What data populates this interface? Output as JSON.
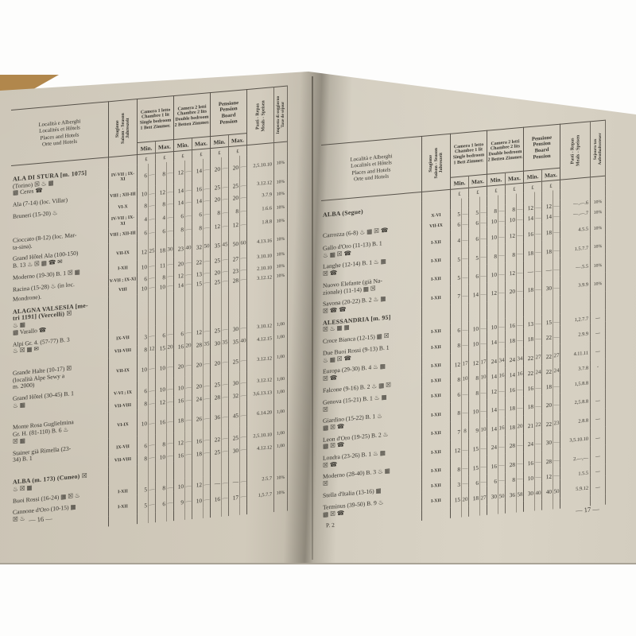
{
  "meta": {
    "left_page_number": "— 16 —",
    "right_page_number": "— 17 —",
    "signature_mark": "P. 2",
    "icon_legend": {
      "☒": "telegraph-icon",
      "♨": "bath-icon",
      "▦": "railway-icon",
      "☎": "phone-icon",
      "✉": "post-icon"
    }
  },
  "header": {
    "locality": [
      "Località e Alberghi",
      "Localités et Hôtels",
      "Places and Hotels",
      "Orte und Hotels"
    ],
    "season": [
      "Stagione",
      "Saison - Season",
      "Jahreszeit"
    ],
    "room1": [
      "Camera 1 letto",
      "Chambre 1 lit",
      "Single bedroom",
      "1 Bett Zimmer."
    ],
    "room2": [
      "Camera 2 letti",
      "Chambre 2 lits",
      "Double bedroom",
      "2 Betten Zimmer."
    ],
    "pension": [
      "Pensione",
      "Pension",
      "Board",
      "Pension"
    ],
    "min_label": "Min.",
    "max_label": "Max.",
    "lire_symbol": "₤",
    "pasti": [
      "Pasti - Repas",
      "Meals - Speisen"
    ],
    "tax_left": [
      "Imposta di soggiorno",
      "Taxe de séjour"
    ],
    "tax_right": [
      "Sojourn tax",
      "Aufenthaltssteuer"
    ]
  },
  "left_page": {
    "rows": [
      {
        "bold": 1,
        "name": [
          "ALA DI STURA [m. 1075]",
          "(Torino) ☒ ♨ ▦",
          "▦ Ceres ☎"
        ],
        "season": "IV-VII ; IX-XI",
        "values": [
          "6",
          "—",
          "8",
          "—",
          "12",
          "—",
          "14",
          "—",
          "20",
          "—",
          "20",
          "—"
        ],
        "pasti": "2,5.10.10",
        "tax": "10%"
      },
      {
        "gap": true,
        "name": [
          "Ala (7-14) (loc. Villar)"
        ],
        "season": "VIII ; XII-III",
        "values": [
          "10",
          "—",
          "12",
          "—",
          "14",
          "—",
          "16",
          "—",
          "25",
          "—",
          "25",
          "—"
        ],
        "pasti": "3.12.12",
        "tax": "10%"
      },
      {
        "gap": true,
        "name": [
          "Bruneri (15-20) ♨"
        ],
        "season": "VI-X",
        "values": [
          "8",
          "—",
          "8",
          "—",
          "14",
          "—",
          "14",
          "—",
          "20",
          "—",
          "20",
          "—"
        ],
        "pasti": "3.7.9",
        "tax": "10%"
      },
      {
        "gap": true,
        "name": [],
        "season": "IV-VII ; IX-XI",
        "values": [
          "4",
          "—",
          "4",
          "—",
          "6",
          "—",
          "6",
          "—",
          "8",
          "—",
          "8",
          "—"
        ],
        "pasti": "1.6.6",
        "tax": "10%"
      },
      {
        "name": [
          "Cioccato (8-12) (loc. Mar-",
          "ta-sina)."
        ],
        "season": "VIII ; XII-III",
        "values": [
          "6",
          "—",
          "6",
          "—",
          "8",
          "—",
          "8",
          "—",
          "12",
          "—",
          "12",
          "—"
        ],
        "pasti": "1.8.8",
        "tax": "10%"
      },
      {
        "gap": true,
        "name": [
          "Grand Hôtel Ala (100-150)",
          "B. 13 ♨ ☒ ▦ ☎ ✉"
        ],
        "season": "VII-IX",
        "values": [
          "12",
          "25",
          "18",
          "30",
          "23",
          "40",
          "32",
          "50",
          "35",
          "45",
          "50",
          "60"
        ],
        "pasti": "4.13.16",
        "tax": "10%"
      },
      {
        "gap": true,
        "name": [
          "Moderno (19-30) B. 1 ☒ ▦"
        ],
        "season": "I-XII",
        "values": [
          "10",
          "—",
          "11",
          "—",
          "20",
          "—",
          "22",
          "—",
          "25",
          "—",
          "27",
          "—"
        ],
        "pasti": "3.10.10",
        "tax": "10%"
      },
      {
        "gap": true,
        "name": [
          "Racina (15-28) ♨ (in loc."
        ],
        "season": "V-VII ; IX-XI",
        "values": [
          "6",
          "—",
          "8",
          "—",
          "12",
          "—",
          "13",
          "—",
          "20",
          "—",
          "23",
          "—"
        ],
        "pasti": "2.10.10",
        "tax": "10%"
      },
      {
        "name": [
          "Mondrone)."
        ],
        "season": "VIII",
        "values": [
          "10",
          "—",
          "10",
          "—",
          "14",
          "—",
          "15",
          "—",
          "25",
          "—",
          "28",
          "—"
        ],
        "pasti": "3.12.12",
        "tax": "10%"
      },
      {
        "gap": true,
        "head": true,
        "bold": 2,
        "name": [
          "ALAGNA VALSESIA [me-",
          "tri 1191] (Vercelli) ☒",
          "♨ ▦",
          "▦ Varallo ☎"
        ],
        "season": "",
        "values": [
          "",
          "",
          "",
          "",
          "",
          "",
          "",
          "",
          "",
          "",
          "",
          ""
        ],
        "pasti": "",
        "tax": ""
      },
      {
        "gap": true,
        "name": [
          "Alpi Gr. 4. (57-77) B. 3",
          "♨ ☒ ▦ ✉"
        ],
        "season": "IX-VII",
        "values": [
          "3",
          "—",
          "6",
          "—",
          "6",
          "—",
          "12",
          "—",
          "25",
          "—",
          "30",
          "—"
        ],
        "pasti": "3.10.12",
        "tax": "1,00"
      },
      {
        "name": [],
        "season": "VII-VIII",
        "values": [
          "8",
          "12",
          "15",
          "20",
          "16",
          "20",
          "28",
          "35",
          "30",
          "35",
          "35",
          "40"
        ],
        "pasti": "4.12.15",
        "tax": "1,00"
      },
      {
        "gap": true,
        "name": [
          "Grande Halte (10-17) ☒",
          "(località Alpe Sewy a",
          "m. 2000)"
        ],
        "season": "VII-IX",
        "values": [
          "10",
          "—",
          "10",
          "—",
          "20",
          "—",
          "20",
          "—",
          "20",
          "—",
          "25",
          "—"
        ],
        "pasti": "3.12.12",
        "tax": "1,00"
      },
      {
        "gap": true,
        "name": [
          "Grand Hôtel (30-45) B. 1",
          "♨ ▦"
        ],
        "season": "V-VI ; IX",
        "values": [
          "6",
          "—",
          "10",
          "—",
          "10",
          "—",
          "20",
          "—",
          "25",
          "—",
          "30",
          "—"
        ],
        "pasti": "3.12.12",
        "tax": "1,00"
      },
      {
        "name": [],
        "season": "VII-VIII",
        "values": [
          "8",
          "—",
          "12",
          "—",
          "16",
          "—",
          "24",
          "—",
          "28",
          "—",
          "32",
          "—"
        ],
        "pasti": "3,6.13.13",
        "tax": "1,00"
      },
      {
        "gap": true,
        "name": [
          "Monte Rosa Guglielmina",
          "Gr. H. (81-110) B. 6 ♨",
          "☒ ▦"
        ],
        "season": "VI-IX",
        "values": [
          "10",
          "—",
          "16",
          "—",
          "18",
          "—",
          "26",
          "—",
          "36",
          "—",
          "45",
          "—"
        ],
        "pasti": "6.14.20",
        "tax": "1,00"
      },
      {
        "gap": true,
        "name": [
          "Stainer già Rimella (23-",
          "34) B. 1"
        ],
        "season": "IX-VII",
        "values": [
          "6",
          "—",
          "8",
          "—",
          "12",
          "—",
          "16",
          "—",
          "22",
          "—",
          "25",
          "—"
        ],
        "pasti": "2,5.10.10",
        "tax": "1,00"
      },
      {
        "name": [],
        "season": "VII-VIII",
        "values": [
          "8",
          "—",
          "10",
          "—",
          "16",
          "—",
          "18",
          "—",
          "25",
          "—",
          "30",
          "—"
        ],
        "pasti": "4.12.12",
        "tax": "1,00"
      },
      {
        "gap": true,
        "head": true,
        "bold": 1,
        "name": [
          "ALBA (m. 173) (Cuneo) ☒",
          "♨ ☒ ▦"
        ],
        "season": "",
        "values": [
          "",
          "",
          "",
          "",
          "",
          "",
          "",
          "",
          "",
          "",
          "",
          ""
        ],
        "pasti": "",
        "tax": ""
      },
      {
        "gap": true,
        "name": [
          "Buoi Rossi (16-24) ▦ ☒ ♨"
        ],
        "season": "I-XII",
        "values": [
          "5",
          "—",
          "8",
          "—",
          "10",
          "—",
          "12",
          "—",
          "—",
          "—",
          "—",
          "—"
        ],
        "pasti": "2.5.7",
        "tax": "10%"
      },
      {
        "gap": true,
        "name": [
          "Cannone d'Oro (10-15) ▦",
          "☒ ♨"
        ],
        "season": "I-XII",
        "values": [
          "5",
          "—",
          "6",
          "—",
          "9",
          "—",
          "10",
          "—",
          "16",
          "—",
          "17",
          "—"
        ],
        "pasti": "1,5.7.7",
        "tax": "10%"
      },
      {
        "name": [],
        "season": "",
        "values": [
          "",
          "",
          "",
          "",
          "",
          "",
          "",
          "",
          "",
          "",
          "",
          ""
        ],
        "pasti": "",
        "tax": ""
      }
    ]
  },
  "right_page": {
    "rows": [
      {
        "head": true,
        "bold": 1,
        "name": [
          "ALBA (Segue)"
        ],
        "season": "",
        "values": [
          "",
          "",
          "",
          "",
          "",
          "",
          "",
          "",
          "",
          "",
          "",
          ""
        ],
        "pasti": "",
        "tax": ""
      },
      {
        "name": [],
        "season": "X-VI",
        "values": [
          "5",
          "—",
          "5",
          "—",
          "8",
          "—",
          "8",
          "—",
          "12",
          "—",
          "12",
          "—"
        ],
        "pasti": "—.—.6",
        "tax": "10%"
      },
      {
        "name": [
          "Carrozza (6-8) ♨ ▦ ☒ ☎"
        ],
        "season": "VII-IX",
        "values": [
          "6",
          "—",
          "6",
          "—",
          "10",
          "—",
          "10",
          "—",
          "14",
          "—",
          "14",
          "—"
        ],
        "pasti": "—.—.7",
        "tax": "10%"
      },
      {
        "gap": true,
        "name": [
          "Gallo d'Oro (11-13) B. 1",
          "♨ ▦ ☒ ☎"
        ],
        "season": "I-XII",
        "values": [
          "4",
          "—",
          "6",
          "—",
          "10",
          "—",
          "12",
          "—",
          "16",
          "—",
          "18",
          "—"
        ],
        "pasti": "4.5.5",
        "tax": "10%"
      },
      {
        "gap": true,
        "name": [
          "Langhe (12-14) B. 1 ♨ ▦",
          "☒ ☎"
        ],
        "season": "I-XII",
        "values": [
          "5",
          "—",
          "5",
          "—",
          "8",
          "—",
          "8",
          "—",
          "18",
          "—",
          "18",
          "—"
        ],
        "pasti": "1.5.7.7",
        "tax": "10%"
      },
      {
        "gap": true,
        "name": [
          "Nuovo Elefante (già Na-",
          "zionale) (11-14) ▦ ☒"
        ],
        "season": "I-XII",
        "values": [
          "5",
          "—",
          "6",
          "—",
          "10",
          "—",
          "12",
          "—",
          "—",
          "—",
          "—",
          "—"
        ],
        "pasti": "—.5.5",
        "tax": "10%"
      },
      {
        "gap": true,
        "name": [
          "Savona (20-22) B. 2 ♨ ▦",
          "☒ ☎ ☎"
        ],
        "season": "I-XII",
        "values": [
          "7",
          "—",
          "14",
          "—",
          "12",
          "—",
          "20",
          "—",
          "18",
          "—",
          "30",
          "—"
        ],
        "pasti": "3.9.9",
        "tax": "10%"
      },
      {
        "gap": true,
        "head": true,
        "bold": 1,
        "name": [
          "ALESSANDRIA [m. 95]",
          "☒ ♨ ▦ ▦"
        ],
        "season": "",
        "values": [
          "",
          "",
          "",
          "",
          "",
          "",
          "",
          "",
          "",
          "",
          "",
          ""
        ],
        "pasti": "",
        "tax": ""
      },
      {
        "gap": true,
        "name": [
          "Croce Bianca (12-15) ▦ ☒"
        ],
        "season": "I-XII",
        "values": [
          "6",
          "—",
          "10",
          "—",
          "10",
          "—",
          "16",
          "—",
          "13",
          "—",
          "15",
          "—"
        ],
        "pasti": "1,2.7.7",
        "tax": "—"
      },
      {
        "gap": true,
        "name": [
          "Due Buoi Rossi (9-13) B. 1",
          "♨ ▦ ☒ ☎"
        ],
        "season": "I-XII",
        "values": [
          "8",
          "—",
          "10",
          "—",
          "14",
          "—",
          "18",
          "—",
          "18",
          "—",
          "22",
          "—"
        ],
        "pasti": "2.9.9",
        "tax": "—"
      },
      {
        "gap": true,
        "name": [
          "Europa (29-30) B. 4 ♨ ▦",
          "☒ ☎"
        ],
        "season": "I-XII",
        "values": [
          "12",
          "17",
          "12",
          "17",
          "24",
          "34",
          "24",
          "34",
          "22",
          "27",
          "22",
          "27"
        ],
        "pasti": "4.11.11",
        "tax": "—"
      },
      {
        "gap": true,
        "name": [
          "Falcone (9-16) B. 2 ♨ ▦ ☒"
        ],
        "season": "I-XII",
        "values": [
          "8",
          "10",
          "8",
          "10",
          "14",
          "16",
          "14",
          "16",
          "22",
          "24",
          "22",
          "24"
        ],
        "pasti": "3.7.8",
        "tax": "-"
      },
      {
        "gap": true,
        "name": [
          "Genova (15-21) B. 1 ♨ ▦",
          "☒"
        ],
        "season": "I-XII",
        "values": [
          "6",
          "—",
          "8",
          "—",
          "12",
          "—",
          "16",
          "—",
          "16",
          "—",
          "18",
          "—"
        ],
        "pasti": "1,5.8.8",
        "tax": ""
      },
      {
        "gap": true,
        "name": [
          "Giardino (15-22) B. 1 ♨",
          "▦ ☒ ☎"
        ],
        "season": "I-XII",
        "values": [
          "8",
          "—",
          "10",
          "—",
          "14",
          "—",
          "18",
          "—",
          "18",
          "—",
          "20",
          "—"
        ],
        "pasti": "2,5.8.8",
        "tax": "—"
      },
      {
        "gap": true,
        "name": [
          "Leon d'Oro (19-25) B. 2 ♨",
          "▦ ☒ ☎"
        ],
        "season": "I-XII",
        "values": [
          "7",
          "8",
          "9",
          "10",
          "14",
          "16",
          "18",
          "20",
          "21",
          "22",
          "22",
          "23"
        ],
        "pasti": "2.8.8",
        "tax": "—"
      },
      {
        "gap": true,
        "name": [
          "Londra (23-26) B. 1 ♨ ▦",
          "☒ ☎"
        ],
        "season": "I-XII",
        "values": [
          "12",
          "—",
          "15",
          "—",
          "24",
          "—",
          "28",
          "—",
          "24",
          "—",
          "30",
          "—"
        ],
        "pasti": "3,5.10.10",
        "tax": "—"
      },
      {
        "gap": true,
        "name": [
          "Moderno (28-40) B. 3 ♨ ▦",
          "☒"
        ],
        "season": "I-XII",
        "values": [
          "8",
          "—",
          "15",
          "—",
          "16",
          "—",
          "28",
          "—",
          "16",
          "—",
          "28",
          "—"
        ],
        "pasti": "2.—,—",
        "tax": "—"
      },
      {
        "gap": true,
        "name": [
          "Stella d'Italia (13-16) ▦"
        ],
        "season": "I-XII",
        "values": [
          "3",
          "—",
          "6",
          "—",
          "6",
          "—",
          "8",
          "—",
          "10",
          "—",
          "12",
          "—"
        ],
        "pasti": "1.5.5",
        "tax": "—"
      },
      {
        "gap": true,
        "name": [
          "Terminus (39-50) B. 9 ♨",
          "▦ ☒ ☎"
        ],
        "season": "I-XII",
        "values": [
          "15",
          "20",
          "18",
          "27",
          "30",
          "50",
          "36",
          "58",
          "30",
          "40",
          "40",
          "50"
        ],
        "pasti": "5.9.12",
        "tax": "—"
      },
      {
        "name": [],
        "season": "",
        "values": [
          "",
          "",
          "",
          "",
          "",
          "",
          "",
          "",
          "",
          "",
          "",
          ""
        ],
        "pasti": "",
        "tax": ""
      }
    ]
  }
}
